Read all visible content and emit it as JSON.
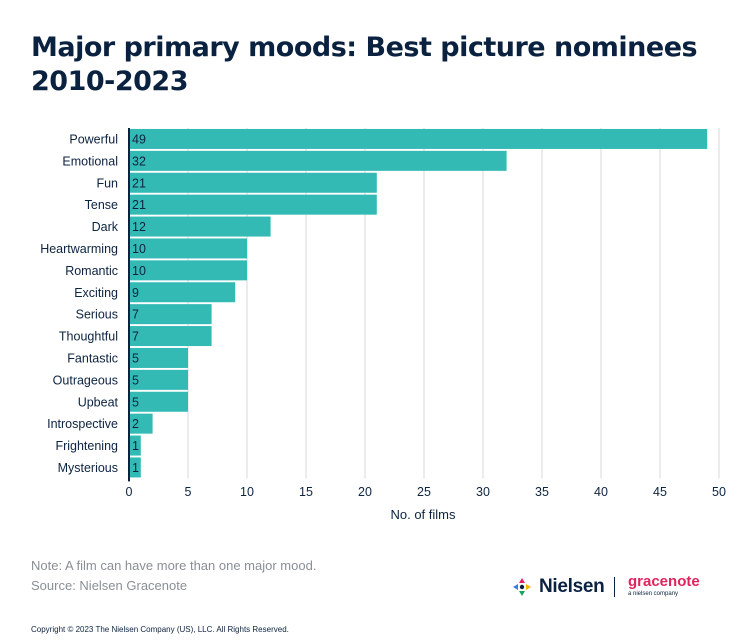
{
  "title": "Major primary moods: Best picture nominees 2010-2023",
  "note": "Note: A film can have more than one major mood.",
  "source": "Source: Nielsen Gracenote",
  "copyright": "Copyright © 2023 The Nielsen Company (US), LLC. All Rights Reserved.",
  "logos": {
    "nielsen": "Nielsen",
    "gracenote": "gracenote",
    "gracenote_sub": "a nielsen company"
  },
  "colors": {
    "bar": "#33bab5",
    "text": "#0d2340",
    "grid": "#d9d9d9",
    "axis": "#0a2240",
    "gracenote": "#e0245e"
  },
  "chart_data": {
    "type": "bar",
    "orientation": "horizontal",
    "categories": [
      "Powerful",
      "Emotional",
      "Fun",
      "Tense",
      "Dark",
      "Heartwarming",
      "Romantic",
      "Exciting",
      "Serious",
      "Thoughtful",
      "Fantastic",
      "Outrageous",
      "Upbeat",
      "Introspective",
      "Frightening",
      "Mysterious"
    ],
    "values": [
      49,
      32,
      21,
      21,
      12,
      10,
      10,
      9,
      7,
      7,
      5,
      5,
      5,
      2,
      1,
      1
    ],
    "xlabel": "No. of films",
    "ylabel": "",
    "xlim": [
      0,
      50
    ],
    "xticks": [
      0,
      5,
      10,
      15,
      20,
      25,
      30,
      35,
      40,
      45,
      50
    ],
    "grid": true,
    "data_labels": true
  }
}
